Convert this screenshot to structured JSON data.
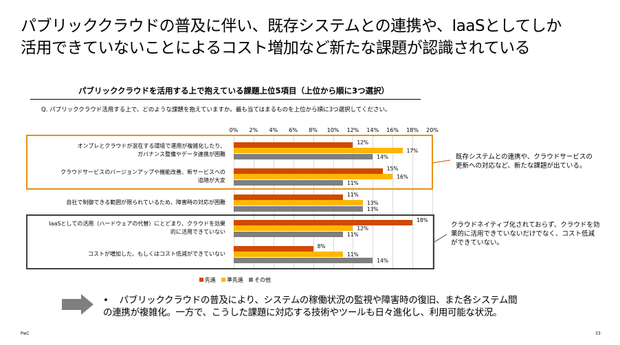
{
  "slide": {
    "title": "パブリッククラウドの普及に伴い、既存システムとの連携や、IaaSとしてしか\n活用できていないことによるコスト増加など新たな課題が認識されている",
    "footer_left": "PwC",
    "page_number": "33",
    "bullet_symbol": "•",
    "bullet_text": "パブリッククラウドの普及により、システムの稼働状況の監視や障害時の復旧、また各システム間\nの連携が複雑化。一方で、こうした課題に対応する技術やツールも日々進化し、利用可能な状況。",
    "note_orange": "既存システムとの連携や、クラウドサービスの\n更新への対応など、新たな課題が出ている。",
    "note_dark": "クラウドネイティブ化されておらず、クラウドを効\n果的に活用できていないだけでなく、コスト低減\nができていない。"
  },
  "chart_data": {
    "type": "bar",
    "orientation": "horizontal",
    "title": "パブリッククラウドを活用する上で抱えている課題上位5項目（上位から順に3つ選択）",
    "question": "Q. パブリッククラウド活用する上で、どのような課題を抱えていますか。最も当てはまるものを上位から順に3つ選択してください。",
    "xlim": [
      0,
      20
    ],
    "ticks": [
      "0%",
      "2%",
      "4%",
      "6%",
      "8%",
      "10%",
      "12%",
      "14%",
      "16%",
      "18%",
      "20%"
    ],
    "categories": [
      "オンプレとクラウドが混在する環境で運用が複雑化したり、\nガバナンス整備やデータ連携が困難",
      "クラウドサービスのバージョンアップや機能改善、新サービスへの\n追随が大変",
      "自社で制御できる範囲が限られているため、障害時の対応が困難",
      "IaaSとしての活用（ハードウェアの代替）にとどまり、クラウドを効果\n的に活用できていない",
      "コストが増加した、もしくはコスト低減ができていない"
    ],
    "series": [
      {
        "name": "先進",
        "color": "#D04A02",
        "values": [
          12,
          15,
          11,
          18,
          8
        ]
      },
      {
        "name": "準先進",
        "color": "#FFB600",
        "values": [
          17,
          16,
          13,
          12,
          11
        ]
      },
      {
        "name": "その他",
        "color": "#7F7F7F",
        "values": [
          14,
          11,
          13,
          11,
          14
        ]
      }
    ],
    "legend": "bottom",
    "grid": true
  }
}
